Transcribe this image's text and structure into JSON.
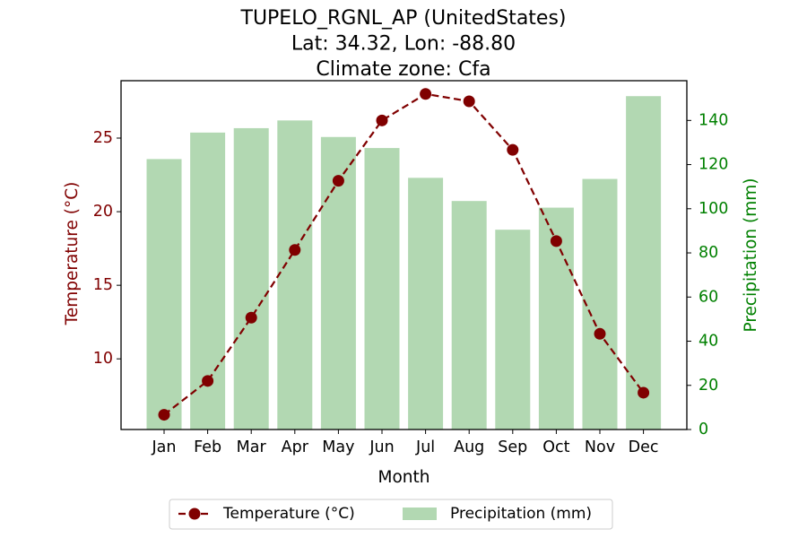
{
  "chart_data": {
    "type": "bar+line",
    "title_lines": [
      "TUPELO_RGNL_AP (UnitedStates)",
      "Lat: 34.32, Lon: -88.80",
      "Climate zone: Cfa"
    ],
    "xlabel": "Month",
    "ylabel_left": "Temperature (°C)",
    "ylabel_right": "Precipitation (mm)",
    "categories": [
      "Jan",
      "Feb",
      "Mar",
      "Apr",
      "May",
      "Jun",
      "Jul",
      "Aug",
      "Sep",
      "Oct",
      "Nov",
      "Dec"
    ],
    "temperature": {
      "name": "Temperature (°C)",
      "color": "#800000",
      "values": [
        6.2,
        8.5,
        12.8,
        17.4,
        22.1,
        26.2,
        28.0,
        27.5,
        24.2,
        18.0,
        11.7,
        7.7
      ]
    },
    "precipitation": {
      "name": "Precipitation (mm)",
      "color": "#b2d8b2",
      "values": [
        122.5,
        134.5,
        136.5,
        140.0,
        132.5,
        127.5,
        114.0,
        103.5,
        90.5,
        100.5,
        113.5,
        151.0
      ]
    },
    "ylim_left": [
      5.2,
      28.9
    ],
    "yticks_left": [
      10,
      15,
      20,
      25
    ],
    "ylim_right": [
      0,
      158
    ],
    "yticks_right": [
      0,
      20,
      40,
      60,
      80,
      100,
      120,
      140
    ],
    "left_axis_color": "#800000",
    "right_axis_color": "#008000",
    "legend_position": "bottom-center"
  }
}
